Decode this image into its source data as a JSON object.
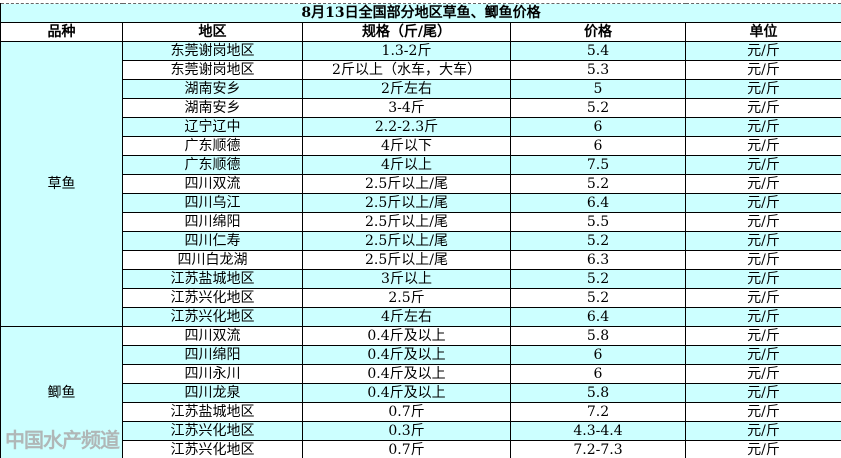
{
  "title": "8月13日全国部分地区草鱼、鲫鱼价格",
  "headers": [
    "品种",
    "地区",
    "规格（斤/尾）",
    "价格",
    "单位"
  ],
  "groups": [
    {
      "species": "草鱼",
      "rows": [
        [
          "东莞谢岗地区",
          "1.3-2斤",
          "5.4",
          "元/斤"
        ],
        [
          "东莞谢岗地区",
          "2斤以上（水车，大车）",
          "5.3",
          "元/斤"
        ],
        [
          "湖南安乡",
          "2斤左右",
          "5",
          "元/斤"
        ],
        [
          "湖南安乡",
          "3-4斤",
          "5.2",
          "元/斤"
        ],
        [
          "辽宁辽中",
          "2.2-2.3斤",
          "6",
          "元/斤"
        ],
        [
          "广东顺德",
          "4斤以下",
          "6",
          "元/斤"
        ],
        [
          "广东顺德",
          "4斤以上",
          "7.5",
          "元/斤"
        ],
        [
          "四川双流",
          "2.5斤以上/尾",
          "5.2",
          "元/斤"
        ],
        [
          "四川乌江",
          "2.5斤以上/尾",
          "6.4",
          "元/斤"
        ],
        [
          "四川绵阳",
          "2.5斤以上/尾",
          "5.5",
          "元/斤"
        ],
        [
          "四川仁寿",
          "2.5斤以上/尾",
          "5.2",
          "元/斤"
        ],
        [
          "四川白龙湖",
          "2.5斤以上/尾",
          "6.3",
          "元/斤"
        ],
        [
          "江苏盐城地区",
          "3斤以上",
          "5.2",
          "元/斤"
        ],
        [
          "江苏兴化地区",
          "2.5斤",
          "5.2",
          "元/斤"
        ],
        [
          "江苏兴化地区",
          "4斤左右",
          "6.4",
          "元/斤"
        ]
      ]
    },
    {
      "species": "鲫鱼",
      "rows": [
        [
          "四川双流",
          "0.4斤及以上",
          "5.8",
          "元/斤"
        ],
        [
          "四川绵阳",
          "0.4斤及以上",
          "6",
          "元/斤"
        ],
        [
          "四川永川",
          "0.4斤及以上",
          "6",
          "元/斤"
        ],
        [
          "四川龙泉",
          "0.4斤及以上",
          "5.8",
          "元/斤"
        ],
        [
          "江苏盐城地区",
          "0.7斤",
          "7.2",
          "元/斤"
        ],
        [
          "江苏兴化地区",
          "0.3斤",
          "4.3-4.4",
          "元/斤"
        ],
        [
          "江苏兴化地区",
          "0.7斤",
          "7.2-7.3",
          "元/斤"
        ]
      ]
    }
  ],
  "watermark": "中国水产频道",
  "colors": {
    "highlight": "#ccffff"
  }
}
